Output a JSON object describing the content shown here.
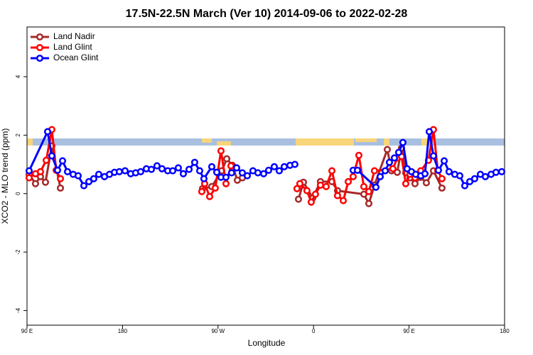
{
  "chart_data": {
    "type": "line",
    "title": "17.5N-22.5N March (Ver 10)   2014-09-06 to 2022-02-28",
    "x_label": "Longitude",
    "y_label": "XCO2 - MLO trend (ppm)",
    "xlim": [
      90,
      540
    ],
    "ylim": [
      -4.5,
      5.7
    ],
    "xticks": [
      {
        "value": 90,
        "label": "90 E"
      },
      {
        "value": 180,
        "label": "180"
      },
      {
        "value": 270,
        "label": "90 W"
      },
      {
        "value": 360,
        "label": "0"
      },
      {
        "value": 450,
        "label": "90 E"
      },
      {
        "value": 540,
        "label": "180"
      }
    ],
    "yticks": [
      -4,
      -2,
      0,
      2,
      4
    ],
    "legend": "top-left",
    "series": [
      {
        "name": "Land Nadir",
        "color": "#a52a2a",
        "x": [
          92.0,
          98.0,
          102.7,
          107.4,
          113.4,
          121.5,
          200,
          255.4,
          264.1,
          273.5,
          278.2,
          283.5,
          288.2,
          292.9,
          380,
          345.8,
          350.5,
          359.2,
          366.5,
          377.3,
          382.6,
          407.4,
          412.1,
          417.4,
          429.5,
          433.5,
          438.9,
          442.9,
          446.9,
          450.9,
          455.6,
          461.0,
          466.3,
          473.0,
          481.0
        ],
        "values": [
          0.66,
          0.34,
          0.58,
          0.39,
          1.63,
          0.19,
          null,
          0.17,
          0.24,
          0.78,
          1.19,
          0.97,
          0.46,
          0.54,
          null,
          -0.19,
          0.39,
          -0.15,
          0.41,
          0.41,
          0.1,
          -0.02,
          -0.34,
          0.29,
          1.51,
          0.78,
          0.73,
          1.56,
          0.71,
          0.54,
          0.34,
          0.56,
          0.37,
          0.78,
          0.19
        ]
      },
      {
        "name": "Land Glint",
        "color": "#ff0000",
        "x": [
          92.0,
          98.0,
          102.7,
          108.1,
          113.4,
          117.5,
          121.5,
          200,
          254.7,
          257.4,
          262.1,
          267.4,
          272.8,
          277.5,
          282.2,
          287.5,
          380,
          344.4,
          347.1,
          353.8,
          357.8,
          361.8,
          366.5,
          371.9,
          377.3,
          382.6,
          388.0,
          392.7,
          397.3,
          402.7,
          407.4,
          412.1,
          417.4,
          434.8,
          438.9,
          442.9,
          446.9,
          450.9,
          455.6,
          461.0,
          468.3,
          473.0,
          477.0,
          481.0
        ],
        "values": [
          0.54,
          0.68,
          0.75,
          1.14,
          2.19,
          0.8,
          0.51,
          null,
          0.07,
          0.34,
          -0.1,
          0.19,
          1.46,
          0.34,
          0.95,
          0.88,
          null,
          0.17,
          0.34,
          0.1,
          -0.29,
          -0.02,
          0.29,
          0.24,
          0.78,
          -0.07,
          -0.24,
          0.41,
          0.58,
          1.31,
          0.24,
          0.07,
          0.78,
          0.85,
          1.22,
          1.27,
          0.34,
          0.66,
          0.54,
          0.78,
          1.14,
          2.19,
          0.8,
          0.51
        ]
      },
      {
        "name": "Ocean Glint",
        "color": "#0000ff",
        "x": [
          92.0,
          109.4,
          113.4,
          118.8,
          123.5,
          128.2,
          133.5,
          138.2,
          143.6,
          148.3,
          152.9,
          157.6,
          163.0,
          167.7,
          172.4,
          177.0,
          182.4,
          187.7,
          192.4,
          197.1,
          202.5,
          207.2,
          212.5,
          217.2,
          222.6,
          227.3,
          232.6,
          237.3,
          242.7,
          248.0,
          252.7,
          256.7,
          264.1,
          268.8,
          272.8,
          277.5,
          282.8,
          287.5,
          292.9,
          297.6,
          302.9,
          307.6,
          313.0,
          317.7,
          323.0,
          327.7,
          332.4,
          337.8,
          342.4,
          370,
          397.3,
          401.4,
          418.8,
          422.8,
          427.5,
          431.5,
          436.2,
          440.2,
          444.2,
          448.2,
          452.3,
          456.3,
          461.0,
          465.0,
          469.0,
          473.0,
          477.7,
          483.1,
          487.7,
          493.1,
          497.8,
          502.5,
          507.2,
          511.8,
          517.2,
          521.9,
          527.3,
          531.9,
          537.3
        ],
        "values": [
          0.78,
          2.12,
          1.29,
          0.8,
          1.12,
          0.75,
          0.66,
          0.61,
          0.27,
          0.41,
          0.51,
          0.66,
          0.58,
          0.66,
          0.73,
          0.75,
          0.78,
          0.68,
          0.71,
          0.75,
          0.85,
          0.83,
          0.95,
          0.85,
          0.78,
          0.78,
          0.88,
          0.68,
          0.83,
          1.07,
          0.78,
          0.51,
          0.92,
          0.73,
          0.56,
          0.56,
          0.71,
          0.88,
          0.71,
          0.61,
          0.78,
          0.71,
          0.68,
          0.8,
          0.92,
          0.78,
          0.92,
          0.97,
          1.0,
          null,
          0.8,
          0.8,
          0.22,
          0.58,
          0.78,
          1.07,
          1.22,
          1.41,
          1.75,
          0.85,
          0.75,
          0.66,
          0.61,
          0.68,
          2.12,
          1.29,
          0.8,
          1.12,
          0.75,
          0.66,
          0.61,
          0.27,
          0.41,
          0.51,
          0.66,
          0.58,
          0.66,
          0.73,
          0.75
        ]
      }
    ]
  }
}
